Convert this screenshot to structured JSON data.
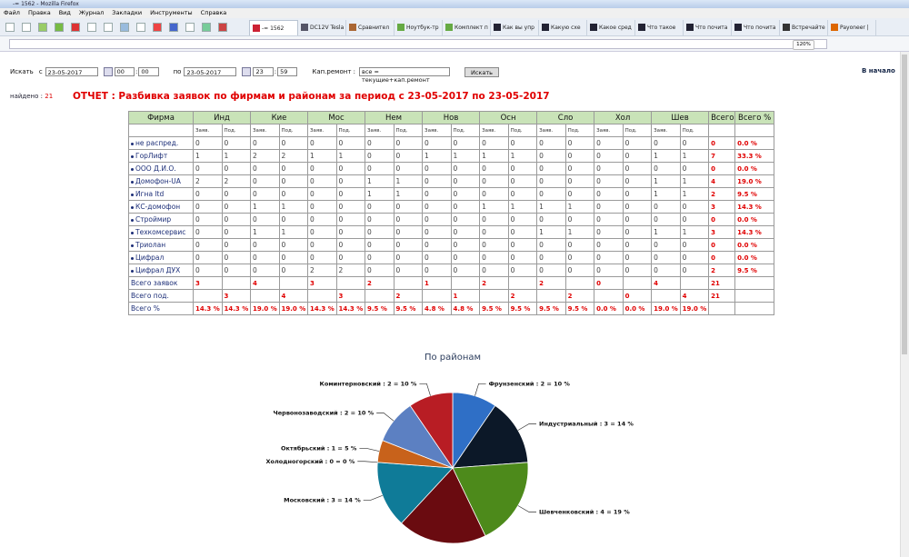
{
  "browser": {
    "window_title": "-= 1562 - Mozilla Firefox",
    "menu": [
      "Файл",
      "Правка",
      "Вид",
      "Журнал",
      "Закладки",
      "Инструменты",
      "Справка"
    ],
    "tabs": [
      "-= 1562",
      "DC12V Tesla",
      "Сравнител",
      "Ноутбук-тр",
      "Комплект п",
      "Как вы упр",
      "Какую схе",
      "Какое сред",
      "Что такое",
      "Что почита",
      "Что почита",
      "Встречайте UN",
      "Payoneer |"
    ],
    "zoom": "120%"
  },
  "form": {
    "search_label": "Искать",
    "from_label": "с",
    "from_date": "23-05-2017",
    "from_hour": "00",
    "from_min": "00",
    "to_label": "по",
    "to_date": "23-05-2017",
    "to_hour": "23",
    "to_min": "59",
    "repair_label": "Кап.ремонт :",
    "repair_option": "все = текущие+кап.ремонт",
    "search_button": "Искать",
    "home_link": "В начало"
  },
  "found_label": "найдено :",
  "found_count": 21,
  "report_title": "ОТЧЕТ : Разбивка заявок по фирмам и районам за период с 23-05-2017 по 23-05-2017",
  "table": {
    "headers": [
      "Фирма",
      "Инд",
      "Кие",
      "Мос",
      "Нем",
      "Нов",
      "Осн",
      "Сло",
      "Хол",
      "Шев",
      "Всего",
      "Всего %"
    ],
    "sub": [
      "Заяв.",
      "Под."
    ],
    "rows": [
      {
        "firm": "не распред.",
        "values": [
          0,
          0,
          0,
          0,
          0,
          0,
          0,
          0,
          0,
          0,
          0,
          0,
          0,
          0,
          0,
          0,
          0,
          0
        ],
        "total": 0,
        "percent": "0.0 %"
      },
      {
        "firm": "ГорЛифт",
        "values": [
          1,
          1,
          2,
          2,
          1,
          1,
          0,
          0,
          1,
          1,
          1,
          1,
          0,
          0,
          0,
          0,
          1,
          1
        ],
        "total": 7,
        "percent": "33.3 %"
      },
      {
        "firm": "ООО Д.И.О.",
        "values": [
          0,
          0,
          0,
          0,
          0,
          0,
          0,
          0,
          0,
          0,
          0,
          0,
          0,
          0,
          0,
          0,
          0,
          0
        ],
        "total": 0,
        "percent": "0.0 %"
      },
      {
        "firm": "Домофон-UA",
        "values": [
          2,
          2,
          0,
          0,
          0,
          0,
          1,
          1,
          0,
          0,
          0,
          0,
          0,
          0,
          0,
          0,
          1,
          1
        ],
        "total": 4,
        "percent": "19.0 %"
      },
      {
        "firm": "Игна ltd",
        "values": [
          0,
          0,
          0,
          0,
          0,
          0,
          1,
          1,
          0,
          0,
          0,
          0,
          0,
          0,
          0,
          0,
          1,
          1
        ],
        "total": 2,
        "percent": "9.5 %"
      },
      {
        "firm": "КС-домофон",
        "values": [
          0,
          0,
          1,
          1,
          0,
          0,
          0,
          0,
          0,
          0,
          1,
          1,
          1,
          1,
          0,
          0,
          0,
          0
        ],
        "total": 3,
        "percent": "14.3 %"
      },
      {
        "firm": "Строймир",
        "values": [
          0,
          0,
          0,
          0,
          0,
          0,
          0,
          0,
          0,
          0,
          0,
          0,
          0,
          0,
          0,
          0,
          0,
          0
        ],
        "total": 0,
        "percent": "0.0 %"
      },
      {
        "firm": "Техкомсервис",
        "values": [
          0,
          0,
          1,
          1,
          0,
          0,
          0,
          0,
          0,
          0,
          0,
          0,
          1,
          1,
          0,
          0,
          1,
          1
        ],
        "total": 3,
        "percent": "14.3 %"
      },
      {
        "firm": "Триолан",
        "values": [
          0,
          0,
          0,
          0,
          0,
          0,
          0,
          0,
          0,
          0,
          0,
          0,
          0,
          0,
          0,
          0,
          0,
          0
        ],
        "total": 0,
        "percent": "0.0 %"
      },
      {
        "firm": "Цифрал",
        "values": [
          0,
          0,
          0,
          0,
          0,
          0,
          0,
          0,
          0,
          0,
          0,
          0,
          0,
          0,
          0,
          0,
          0,
          0
        ],
        "total": 0,
        "percent": "0.0 %"
      },
      {
        "firm": "Цифрал ДУХ",
        "values": [
          0,
          0,
          0,
          0,
          2,
          2,
          0,
          0,
          0,
          0,
          0,
          0,
          0,
          0,
          0,
          0,
          0,
          0
        ],
        "total": 2,
        "percent": "9.5 %"
      }
    ],
    "totals": [
      {
        "label": "Всего заявок",
        "values": [
          3,
          4,
          3,
          2,
          1,
          2,
          2,
          0,
          4
        ],
        "total": 21
      },
      {
        "label": "Всего под.",
        "values": [
          3,
          4,
          3,
          2,
          1,
          2,
          2,
          0,
          4
        ],
        "total": 21
      }
    ],
    "percent_row": {
      "label": "Всего %",
      "values": [
        "14.3 %",
        "14.3 %",
        "19.0 %",
        "19.0 %",
        "14.3 %",
        "14.3 %",
        "9.5 %",
        "9.5 %",
        "4.8 %",
        "4.8 %",
        "9.5 %",
        "9.5 %",
        "9.5 %",
        "9.5 %",
        "0.0 %",
        "0.0 %",
        "19.0 %",
        "19.0 %"
      ]
    }
  },
  "chart_data": {
    "type": "pie",
    "title": "По районам",
    "labels": [
      "Фрунзенский : 2 = 10 %",
      "Индустриальный : 3 = 14 %",
      "Шевченковский : 4 = 19 %",
      null,
      "Московский : 3 = 14 %",
      "Холодногорский : 0 = 0 %",
      "Октябрьский : 1 = 5 %",
      "Червонозаводский : 2 = 10 %",
      "Коминтерновский : 2 = 10 %"
    ],
    "values": [
      2,
      3,
      4,
      4,
      3,
      0,
      1,
      2,
      2
    ],
    "colors": [
      "#2f6fc6",
      "#0c1828",
      "#4d8a1b",
      "#6a0b10",
      "#0f7b98",
      "#1b5f78",
      "#c8621b",
      "#5c80c2",
      "#b81d24"
    ]
  }
}
